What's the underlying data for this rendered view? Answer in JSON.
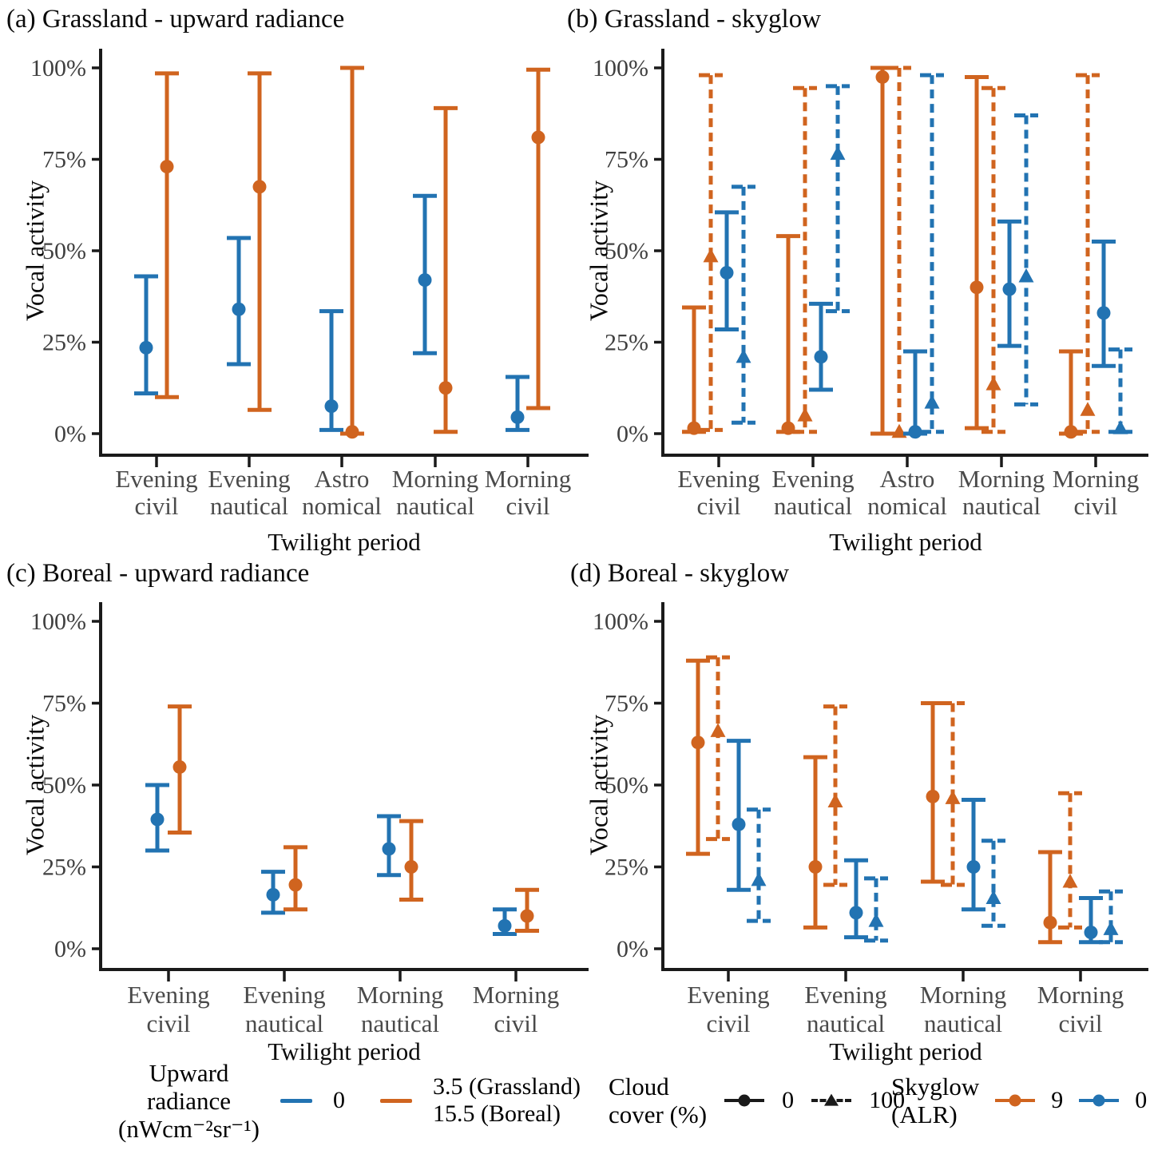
{
  "figure": {
    "ylabel": "Vocal activity",
    "xlabel": "Twilight period",
    "ytick_labels": [
      "0%",
      "25%",
      "50%",
      "75%",
      "100%"
    ]
  },
  "palette": {
    "blue": "#2273B2",
    "orange": "#D0641F",
    "black": "#1A1A1A"
  },
  "chart_data": [
    {
      "id": "a",
      "type": "scatter",
      "title": "(a) Grassland - upward radiance",
      "xlabel": "Twilight period",
      "ylabel": "Vocal activity",
      "ylim": [
        0,
        100
      ],
      "categories": [
        [
          "Evening",
          "civil"
        ],
        [
          "Evening",
          "nautical"
        ],
        [
          "Astro",
          "nomical"
        ],
        [
          "Morning",
          "nautical"
        ],
        [
          "Morning",
          "civil"
        ]
      ],
      "series": [
        {
          "name": "Upward radiance 0",
          "color": "blue",
          "linestyle": "solid",
          "marker": "circle",
          "values": [
            23.5,
            34,
            7.5,
            42,
            4.5
          ],
          "ci_low": [
            11,
            19,
            1,
            22,
            1
          ],
          "ci_high": [
            43,
            53.5,
            33.5,
            65,
            15.5
          ]
        },
        {
          "name": "Upward radiance 3.5 (Grassland)",
          "color": "orange",
          "linestyle": "solid",
          "marker": "circle",
          "values": [
            73,
            67.5,
            0.5,
            12.5,
            81
          ],
          "ci_low": [
            10,
            6.5,
            0,
            0.5,
            7
          ],
          "ci_high": [
            98.5,
            98.5,
            100,
            89,
            99.5
          ]
        }
      ]
    },
    {
      "id": "b",
      "type": "scatter",
      "title": "(b) Grassland - skyglow",
      "xlabel": "Twilight period",
      "ylabel": "Vocal activity",
      "ylim": [
        0,
        100
      ],
      "categories": [
        [
          "Evening",
          "civil"
        ],
        [
          "Evening",
          "nautical"
        ],
        [
          "Astro",
          "nomical"
        ],
        [
          "Morning",
          "nautical"
        ],
        [
          "Morning",
          "civil"
        ]
      ],
      "series": [
        {
          "name": "Skyglow 9, cloud cover 0",
          "color": "orange",
          "linestyle": "solid",
          "marker": "circle",
          "values": [
            1.5,
            1.5,
            97.5,
            40,
            0.5
          ],
          "ci_low": [
            0.5,
            0.5,
            0,
            1.5,
            0
          ],
          "ci_high": [
            34.5,
            54,
            100,
            97.5,
            22.5
          ]
        },
        {
          "name": "Skyglow 9, cloud cover 100",
          "color": "orange",
          "linestyle": "dashed",
          "marker": "triangle",
          "values": [
            48.5,
            5,
            0.5,
            13.5,
            6.5
          ],
          "ci_low": [
            1,
            0.5,
            0,
            0.5,
            0.5
          ],
          "ci_high": [
            98,
            94.5,
            100,
            94.5,
            98
          ]
        },
        {
          "name": "Skyglow 0, cloud cover 0",
          "color": "blue",
          "linestyle": "solid",
          "marker": "circle",
          "values": [
            44,
            21,
            0.5,
            39.5,
            33
          ],
          "ci_low": [
            28.5,
            12,
            0,
            24,
            18.5
          ],
          "ci_high": [
            60.5,
            35.5,
            22.5,
            58,
            52.5
          ]
        },
        {
          "name": "Skyglow 0, cloud cover 100",
          "color": "blue",
          "linestyle": "dashed",
          "marker": "triangle",
          "values": [
            21,
            76.5,
            8.5,
            43,
            1.5
          ],
          "ci_low": [
            3,
            33.5,
            0.5,
            8,
            0.5
          ],
          "ci_high": [
            67.5,
            95,
            98,
            87,
            23
          ]
        }
      ]
    },
    {
      "id": "c",
      "type": "scatter",
      "title": "(c) Boreal - upward radiance",
      "xlabel": "Twilight period",
      "ylabel": "Vocal activity",
      "ylim": [
        0,
        100
      ],
      "categories": [
        [
          "Evening",
          "civil"
        ],
        [
          "Evening",
          "nautical"
        ],
        [
          "Morning",
          "nautical"
        ],
        [
          "Morning",
          "civil"
        ]
      ],
      "series": [
        {
          "name": "Upward radiance 0",
          "color": "blue",
          "linestyle": "solid",
          "marker": "circle",
          "values": [
            39.5,
            16.5,
            30.5,
            7
          ],
          "ci_low": [
            30,
            11,
            22.5,
            4.5
          ],
          "ci_high": [
            50,
            23.5,
            40.5,
            12
          ]
        },
        {
          "name": "Upward radiance 15.5 (Boreal)",
          "color": "orange",
          "linestyle": "solid",
          "marker": "circle",
          "values": [
            55.5,
            19.5,
            25,
            10
          ],
          "ci_low": [
            35.5,
            12,
            15,
            5.5
          ],
          "ci_high": [
            74,
            31,
            39,
            18
          ]
        }
      ]
    },
    {
      "id": "d",
      "type": "scatter",
      "title": "(d) Boreal - skyglow",
      "xlabel": "Twilight period",
      "ylabel": "Vocal activity",
      "ylim": [
        0,
        100
      ],
      "categories": [
        [
          "Evening",
          "civil"
        ],
        [
          "Evening",
          "nautical"
        ],
        [
          "Morning",
          "nautical"
        ],
        [
          "Morning",
          "civil"
        ]
      ],
      "series": [
        {
          "name": "Skyglow 9, cloud cover 0",
          "color": "orange",
          "linestyle": "solid",
          "marker": "circle",
          "values": [
            63,
            25,
            46.5,
            8
          ],
          "ci_low": [
            29,
            6.5,
            20.5,
            2
          ],
          "ci_high": [
            88,
            58.5,
            75,
            29.5
          ]
        },
        {
          "name": "Skyglow 9, cloud cover 100",
          "color": "orange",
          "linestyle": "dashed",
          "marker": "triangle",
          "values": [
            66.5,
            45,
            46,
            20.5
          ],
          "ci_low": [
            33.5,
            19.5,
            19.5,
            6.5
          ],
          "ci_high": [
            89,
            74,
            75,
            47.5
          ]
        },
        {
          "name": "Skyglow 0, cloud cover 0",
          "color": "blue",
          "linestyle": "solid",
          "marker": "circle",
          "values": [
            38,
            11,
            25,
            5
          ],
          "ci_low": [
            18,
            3.5,
            12,
            2
          ],
          "ci_high": [
            63.5,
            27,
            45.5,
            15.5
          ]
        },
        {
          "name": "Skyglow 0, cloud cover 100",
          "color": "blue",
          "linestyle": "dashed",
          "marker": "triangle",
          "values": [
            21,
            8.5,
            15.5,
            6
          ],
          "ci_low": [
            8.5,
            2.5,
            7,
            2
          ],
          "ci_high": [
            42.5,
            21.5,
            33,
            17.5
          ]
        }
      ]
    }
  ],
  "legends": {
    "upward": {
      "title_lines": [
        "Upward",
        "radiance",
        "(nWcm⁻²sr⁻¹)"
      ],
      "entries": [
        {
          "label_lines": [
            "0"
          ],
          "color": "blue"
        },
        {
          "label_lines": [
            "3.5 (Grassland)",
            "15.5 (Boreal)"
          ],
          "color": "orange"
        }
      ]
    },
    "cloud": {
      "title_lines": [
        "Cloud",
        "cover (%)"
      ],
      "entries": [
        {
          "label": "0",
          "marker": "circle",
          "linestyle": "solid"
        },
        {
          "label": "100",
          "marker": "triangle",
          "linestyle": "dashed"
        }
      ]
    },
    "skyglow": {
      "title_lines": [
        "Skyglow",
        "(ALR)"
      ],
      "entries": [
        {
          "label": "9",
          "color": "orange"
        },
        {
          "label": "0",
          "color": "blue"
        }
      ]
    }
  }
}
